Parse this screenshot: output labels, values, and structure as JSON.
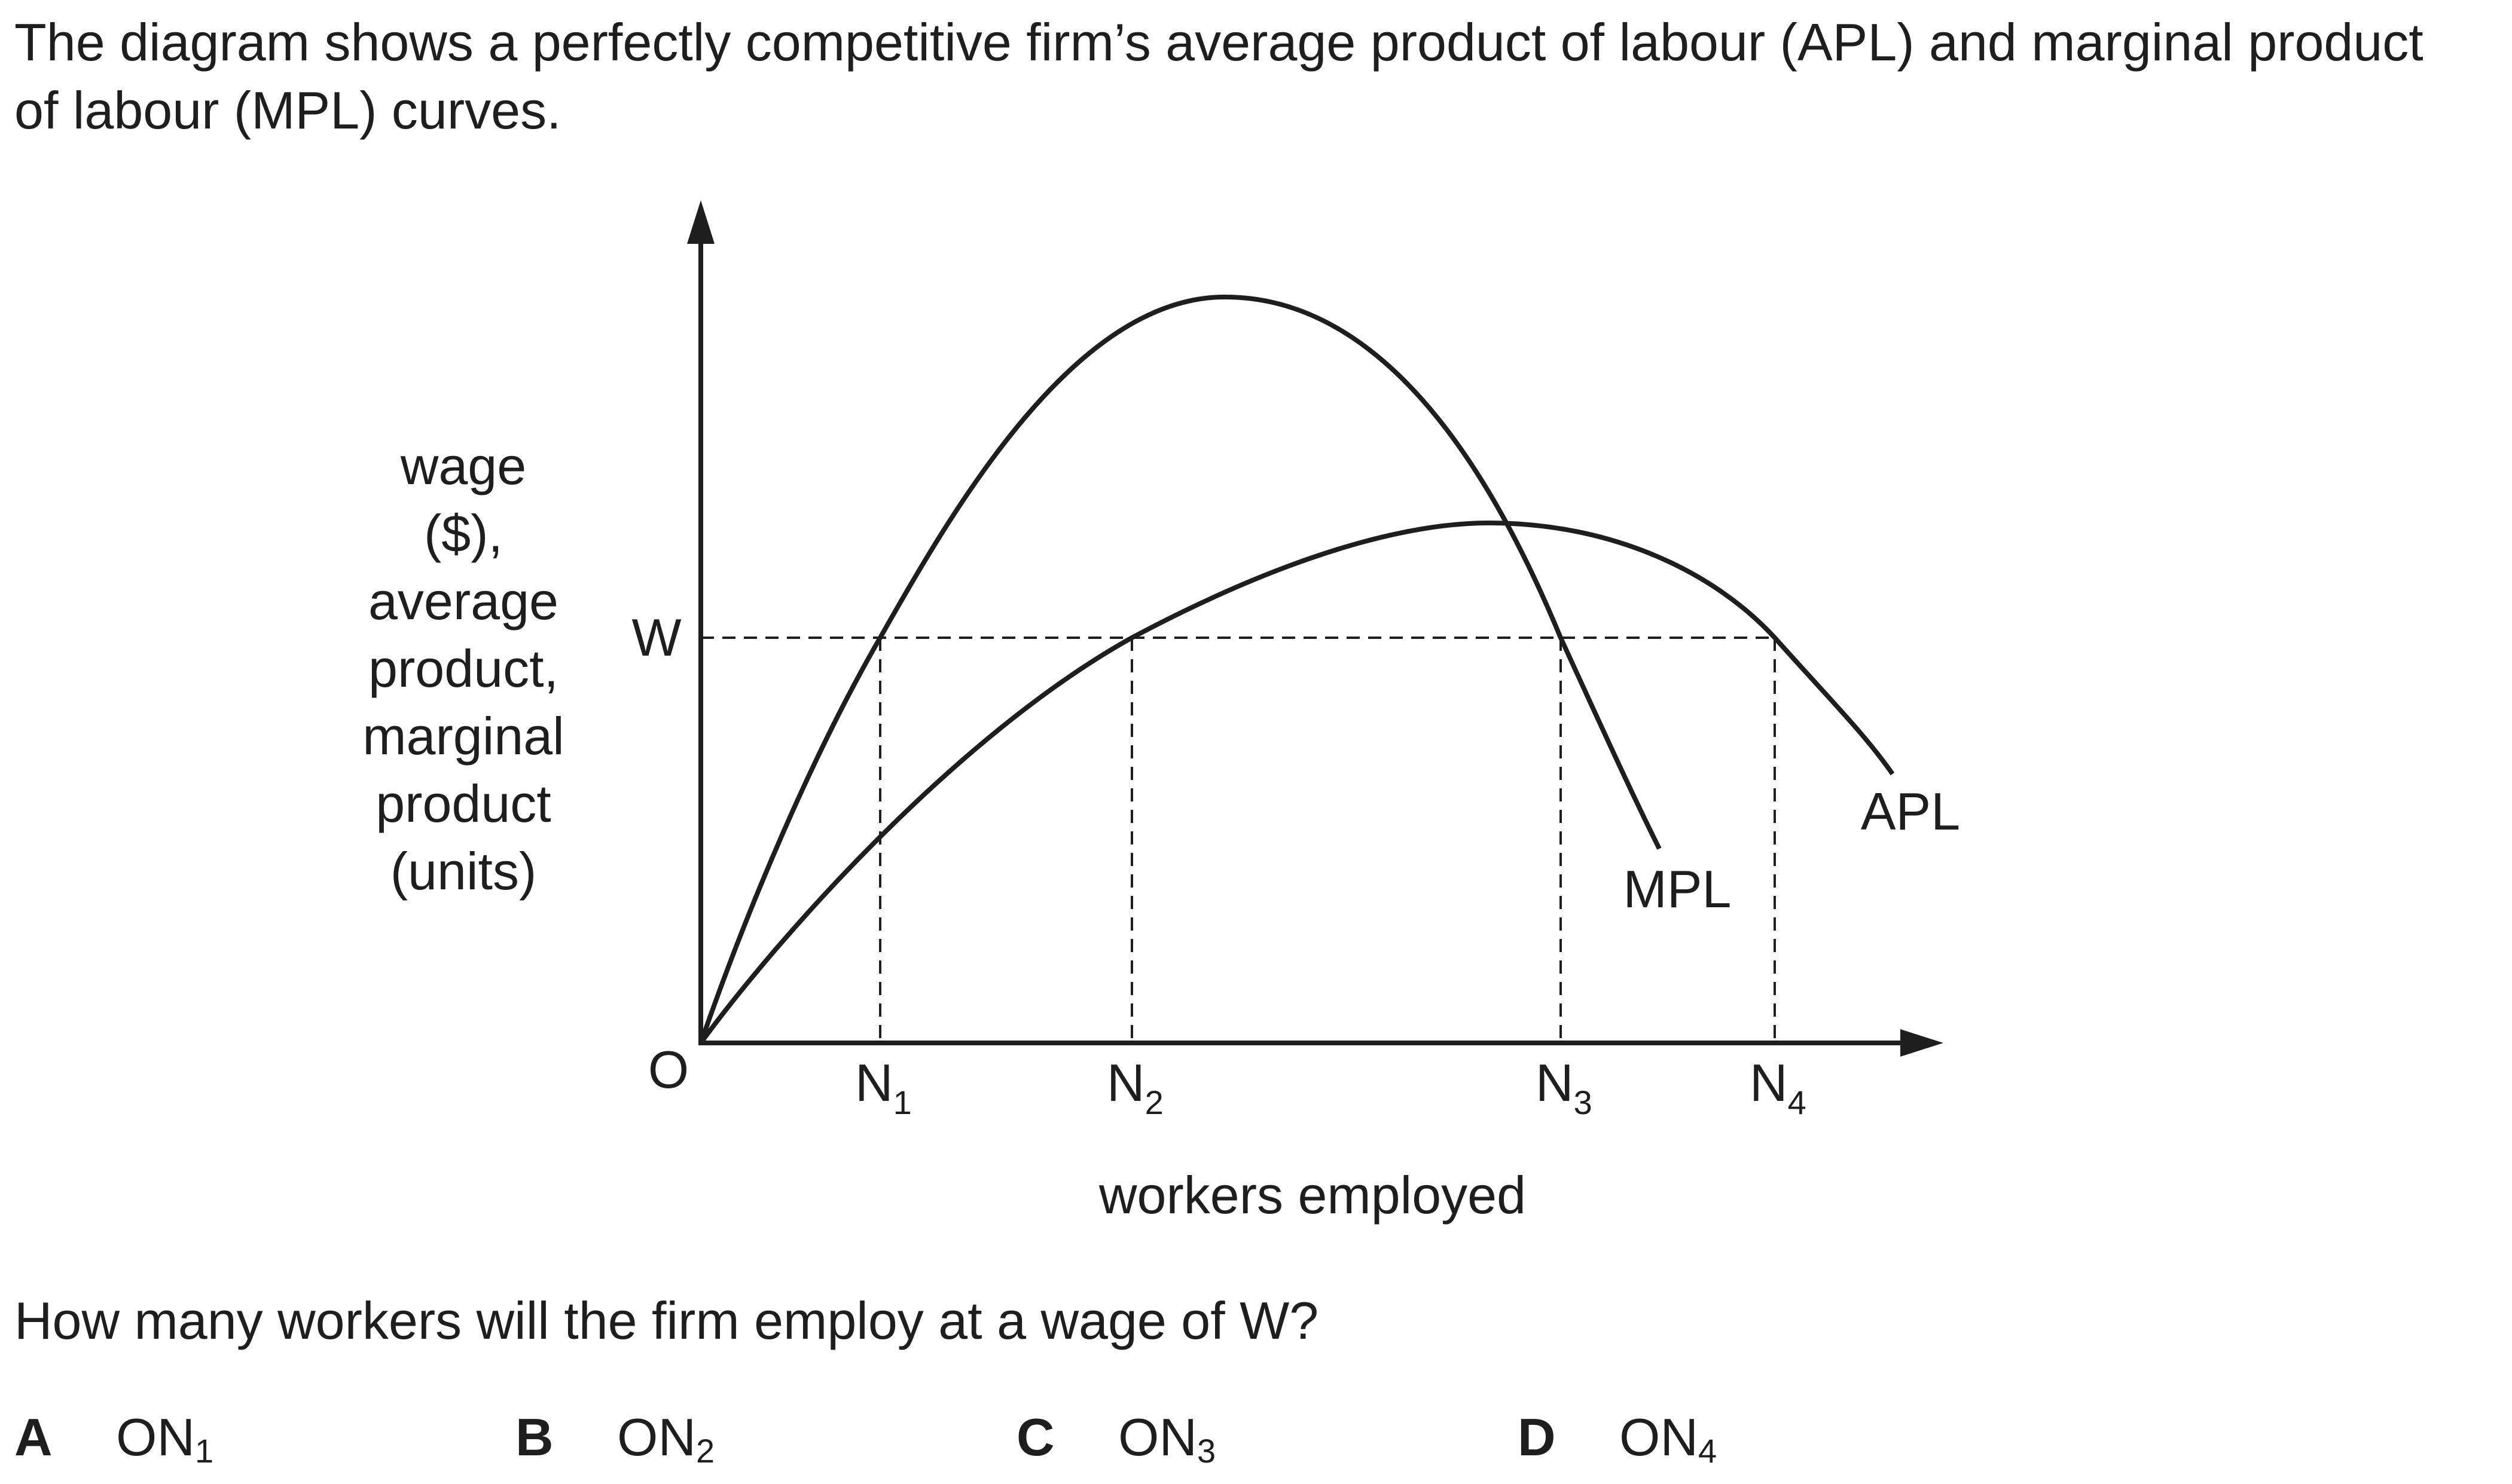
{
  "intro": "The diagram shows a perfectly competitive firm’s average product of labour (APL) and marginal product of labour (MPL) curves.",
  "diagram": {
    "y_axis_label_lines": [
      "wage",
      "($),",
      "average",
      "product,",
      "marginal",
      "product",
      "(units)"
    ],
    "x_axis_label": "workers employed",
    "origin_label": "O",
    "wage_label": "W",
    "x_ticks": [
      {
        "base": "N",
        "sub": "1"
      },
      {
        "base": "N",
        "sub": "2"
      },
      {
        "base": "N",
        "sub": "3"
      },
      {
        "base": "N",
        "sub": "4"
      }
    ],
    "curves": [
      {
        "label": "MPL"
      },
      {
        "label": "APL"
      }
    ]
  },
  "question": "How many workers will the firm employ at a wage of W?",
  "options": [
    {
      "letter": "A",
      "text": "ON",
      "sub": "1"
    },
    {
      "letter": "B",
      "text": "ON",
      "sub": "2"
    },
    {
      "letter": "C",
      "text": "ON",
      "sub": "3"
    },
    {
      "letter": "D",
      "text": "ON",
      "sub": "4"
    }
  ]
}
